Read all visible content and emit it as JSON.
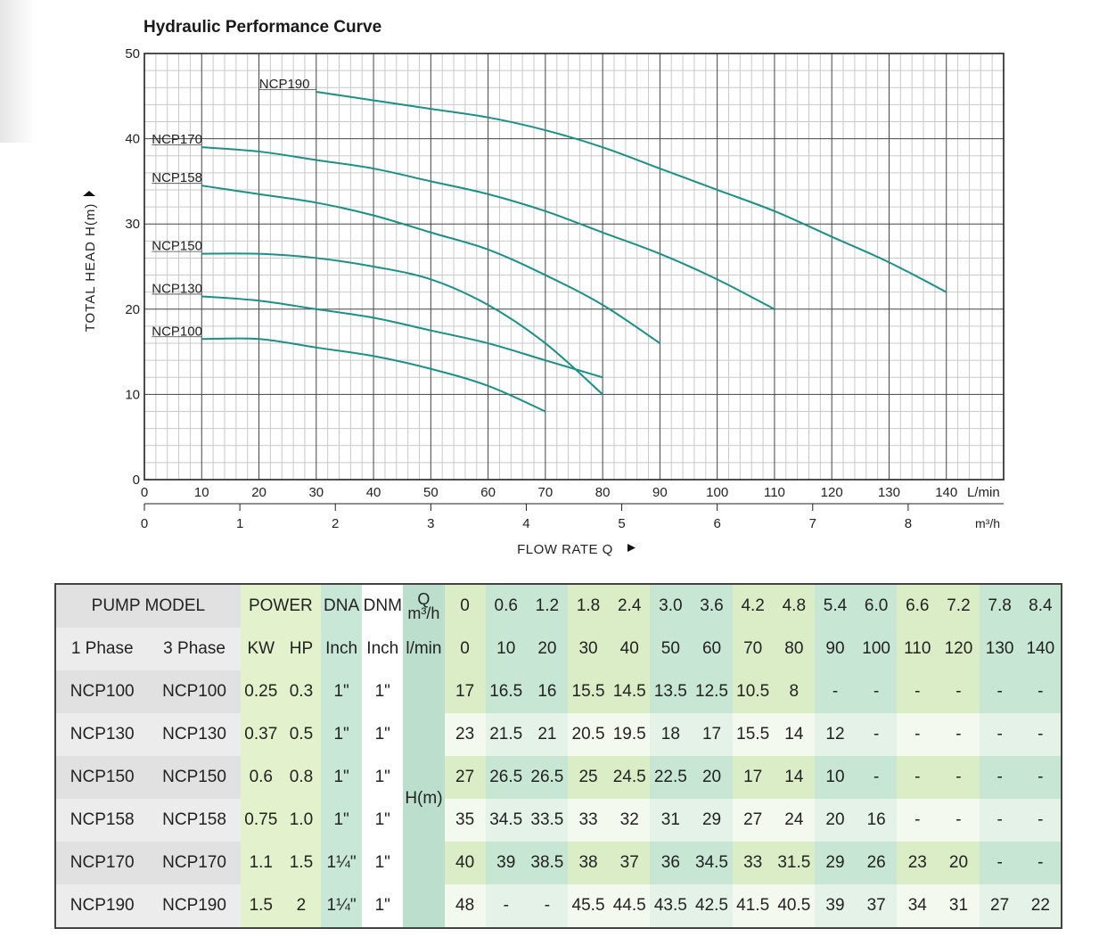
{
  "chart_data": {
    "type": "line",
    "title": "Hydraulic Performance Curve",
    "ylabel": "TOTAL HEAD H(m)",
    "xlabel": "FLOW RATE Q",
    "x_unit": "L/min",
    "x2_unit": "m³/h",
    "xlim": [
      0,
      150
    ],
    "ylim": [
      0,
      50
    ],
    "y_ticks": [
      0,
      10,
      20,
      30,
      40,
      50
    ],
    "x_ticks": [
      0,
      10,
      20,
      30,
      40,
      50,
      60,
      70,
      80,
      90,
      100,
      110,
      120,
      130,
      140
    ],
    "x2_ticks": [
      0,
      1,
      2,
      3,
      4,
      5,
      6,
      7,
      8
    ],
    "grid": true,
    "series": [
      {
        "name": "NCP190",
        "x": [
          30,
          40,
          50,
          60,
          70,
          80,
          90,
          100,
          110,
          120,
          130,
          140
        ],
        "y": [
          45.5,
          44.5,
          43.5,
          42.5,
          41,
          39,
          36.5,
          34,
          31.5,
          28.5,
          25.5,
          22
        ]
      },
      {
        "name": "NCP170",
        "x": [
          10,
          20,
          30,
          40,
          50,
          60,
          70,
          80,
          90,
          100,
          110
        ],
        "y": [
          39,
          38.5,
          37.5,
          36.5,
          35,
          33.5,
          31.5,
          29,
          26.5,
          23.5,
          20
        ]
      },
      {
        "name": "NCP158",
        "x": [
          10,
          20,
          30,
          40,
          50,
          60,
          70,
          80,
          90
        ],
        "y": [
          34.5,
          33.5,
          32.5,
          31,
          29,
          27,
          24,
          20.5,
          16
        ]
      },
      {
        "name": "NCP150",
        "x": [
          10,
          20,
          30,
          40,
          50,
          60,
          70,
          80
        ],
        "y": [
          26.5,
          26.5,
          26,
          25,
          23.5,
          20.5,
          16,
          10
        ]
      },
      {
        "name": "NCP130",
        "x": [
          10,
          20,
          30,
          40,
          50,
          60,
          70,
          80
        ],
        "y": [
          21.5,
          21,
          20,
          19,
          17.5,
          16,
          14,
          12
        ]
      },
      {
        "name": "NCP100",
        "x": [
          10,
          20,
          30,
          40,
          50,
          60,
          70
        ],
        "y": [
          16.5,
          16.5,
          15.5,
          14.5,
          13,
          11,
          8
        ]
      }
    ],
    "colors": {
      "curve": "#199088",
      "grid_major": "#444444",
      "grid_minor": "#c9c9c9"
    }
  },
  "table": {
    "header1": {
      "pump_model": "PUMP MODEL",
      "power": "POWER",
      "dna": "DNA",
      "dnm": "DNM",
      "q_label": "Q",
      "q_unit": "m³/h"
    },
    "header2": {
      "one_phase": "1 Phase",
      "three_phase": "3 Phase",
      "kw": "KW",
      "hp": "HP",
      "dna_unit": "Inch",
      "dnm_unit": "Inch",
      "lmin": "l/min"
    },
    "flow_m3h": [
      "0",
      "0.6",
      "1.2",
      "1.8",
      "2.4",
      "3.0",
      "3.6",
      "4.2",
      "4.8",
      "5.4",
      "6.0",
      "6.6",
      "7.2",
      "7.8",
      "8.4"
    ],
    "flow_lmin": [
      "0",
      "10",
      "20",
      "30",
      "40",
      "50",
      "60",
      "70",
      "80",
      "90",
      "100",
      "110",
      "120",
      "130",
      "140"
    ],
    "head_label": "H(m)",
    "rows": [
      {
        "p1": "NCP100",
        "p3": "NCP100",
        "kw": "0.25",
        "hp": "0.3",
        "dna": "1\"",
        "dnm": "1\"",
        "h": [
          "17",
          "16.5",
          "16",
          "15.5",
          "14.5",
          "13.5",
          "12.5",
          "10.5",
          "8",
          "-",
          "-",
          "-",
          "-",
          "-",
          "-"
        ]
      },
      {
        "p1": "NCP130",
        "p3": "NCP130",
        "kw": "0.37",
        "hp": "0.5",
        "dna": "1\"",
        "dnm": "1\"",
        "h": [
          "23",
          "21.5",
          "21",
          "20.5",
          "19.5",
          "18",
          "17",
          "15.5",
          "14",
          "12",
          "-",
          "-",
          "-",
          "-",
          "-"
        ]
      },
      {
        "p1": "NCP150",
        "p3": "NCP150",
        "kw": "0.6",
        "hp": "0.8",
        "dna": "1\"",
        "dnm": "1\"",
        "h": [
          "27",
          "26.5",
          "26.5",
          "25",
          "24.5",
          "22.5",
          "20",
          "17",
          "14",
          "10",
          "-",
          "-",
          "-",
          "-",
          "-"
        ]
      },
      {
        "p1": "NCP158",
        "p3": "NCP158",
        "kw": "0.75",
        "hp": "1.0",
        "dna": "1\"",
        "dnm": "1\"",
        "h": [
          "35",
          "34.5",
          "33.5",
          "33",
          "32",
          "31",
          "29",
          "27",
          "24",
          "20",
          "16",
          "-",
          "-",
          "-",
          "-"
        ]
      },
      {
        "p1": "NCP170",
        "p3": "NCP170",
        "kw": "1.1",
        "hp": "1.5",
        "dna": "1¼\"",
        "dnm": "1\"",
        "h": [
          "40",
          "39",
          "38.5",
          "38",
          "37",
          "36",
          "34.5",
          "33",
          "31.5",
          "29",
          "26",
          "23",
          "20",
          "-",
          "-"
        ]
      },
      {
        "p1": "NCP190",
        "p3": "NCP190",
        "kw": "1.5",
        "hp": "2",
        "dna": "1¼\"",
        "dnm": "1\"",
        "h": [
          "48",
          "-",
          "-",
          "45.5",
          "44.5",
          "43.5",
          "42.5",
          "41.5",
          "40.5",
          "39",
          "37",
          "34",
          "31",
          "27",
          "22"
        ]
      }
    ]
  }
}
